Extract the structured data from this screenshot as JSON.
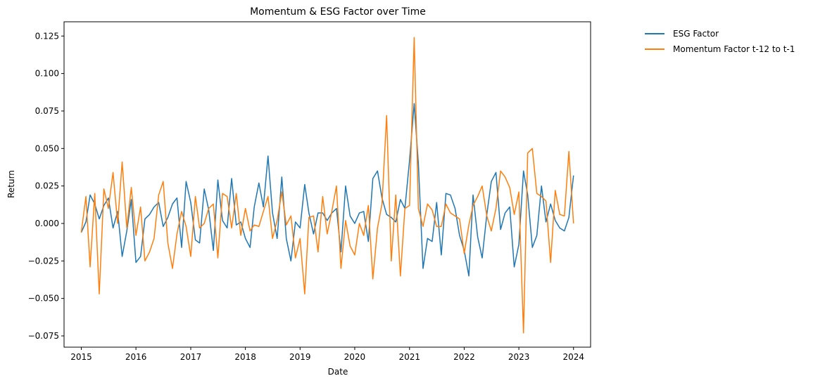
{
  "chart_data": {
    "type": "line",
    "title": "Momentum & ESG Factor over Time",
    "xlabel": "Date",
    "ylabel": "Return",
    "xlim": [
      "2014-09-08",
      "2024-04-24"
    ],
    "ylim": [
      -0.0825,
      0.1345
    ],
    "x_ticks": [
      "2015",
      "2016",
      "2017",
      "2018",
      "2019",
      "2020",
      "2021",
      "2022",
      "2023",
      "2024"
    ],
    "y_ticks": [
      "−0.075",
      "−0.050",
      "−0.025",
      "0.000",
      "0.025",
      "0.050",
      "0.075",
      "0.100",
      "0.125"
    ],
    "y_tick_values": [
      -0.075,
      -0.05,
      -0.025,
      0.0,
      0.025,
      0.05,
      0.075,
      0.1,
      0.125
    ],
    "grid": false,
    "legend_position": "outside-top-right",
    "dates_start": "2015-01",
    "dates_frequency": "monthly",
    "series": [
      {
        "name": "ESG Factor",
        "color": "#1f77b4",
        "values": [
          -0.006,
          0.001,
          0.019,
          0.013,
          0.003,
          0.012,
          0.017,
          -0.003,
          0.008,
          -0.022,
          -0.005,
          0.016,
          -0.026,
          -0.022,
          0.003,
          0.006,
          0.011,
          0.014,
          -0.002,
          0.004,
          0.013,
          0.017,
          -0.016,
          0.028,
          0.014,
          -0.011,
          -0.013,
          0.023,
          0.009,
          -0.018,
          0.029,
          0.002,
          -0.003,
          0.03,
          -0.001,
          0.001,
          -0.01,
          -0.016,
          0.011,
          0.027,
          0.011,
          0.045,
          0.007,
          -0.01,
          0.031,
          -0.01,
          -0.025,
          0.001,
          -0.003,
          0.026,
          0.007,
          -0.007,
          0.007,
          0.007,
          0.002,
          0.007,
          0.01,
          -0.019,
          0.025,
          0.005,
          0.0,
          0.007,
          0.008,
          -0.012,
          0.03,
          0.035,
          0.017,
          0.006,
          0.004,
          0.001,
          0.016,
          0.01,
          0.042,
          0.08,
          0.04,
          -0.03,
          -0.01,
          -0.012,
          0.014,
          -0.021,
          0.02,
          0.019,
          0.01,
          -0.008,
          -0.018,
          -0.035,
          0.019,
          -0.009,
          -0.023,
          0.006,
          0.028,
          0.034,
          -0.004,
          0.007,
          0.011,
          -0.029,
          -0.014,
          0.035,
          0.019,
          -0.016,
          -0.008,
          0.025,
          0.001,
          0.013,
          0.002,
          -0.003,
          -0.005,
          0.004,
          0.032
        ]
      },
      {
        "name": "Momentum Factor t-12 to t-1",
        "color": "#ff7f0e",
        "values": [
          -0.006,
          0.018,
          -0.029,
          0.02,
          -0.047,
          0.023,
          0.01,
          0.034,
          0.0,
          0.041,
          -0.003,
          0.024,
          -0.008,
          0.011,
          -0.025,
          -0.019,
          -0.01,
          0.019,
          0.028,
          -0.013,
          -0.03,
          -0.007,
          0.008,
          -0.002,
          -0.022,
          0.018,
          -0.003,
          0.0,
          0.01,
          0.013,
          -0.023,
          0.02,
          0.018,
          -0.003,
          0.02,
          -0.008,
          0.01,
          -0.005,
          -0.001,
          -0.002,
          0.008,
          0.018,
          -0.01,
          0.002,
          0.021,
          -0.001,
          0.005,
          -0.023,
          -0.01,
          -0.047,
          0.004,
          0.005,
          -0.019,
          0.018,
          -0.007,
          0.008,
          0.025,
          -0.03,
          0.002,
          -0.015,
          -0.021,
          0.0,
          -0.008,
          0.012,
          -0.037,
          -0.003,
          0.013,
          0.072,
          -0.025,
          0.019,
          -0.035,
          0.01,
          0.012,
          0.124,
          0.01,
          -0.002,
          0.013,
          0.009,
          -0.002,
          -0.002,
          0.013,
          0.007,
          0.005,
          0.003,
          -0.02,
          -0.001,
          0.012,
          0.018,
          0.025,
          0.005,
          -0.005,
          0.01,
          0.035,
          0.031,
          0.024,
          0.006,
          0.021,
          -0.073,
          0.047,
          0.05,
          0.02,
          0.018,
          0.015,
          -0.026,
          0.022,
          0.006,
          0.005,
          0.048,
          0.0
        ]
      }
    ]
  }
}
